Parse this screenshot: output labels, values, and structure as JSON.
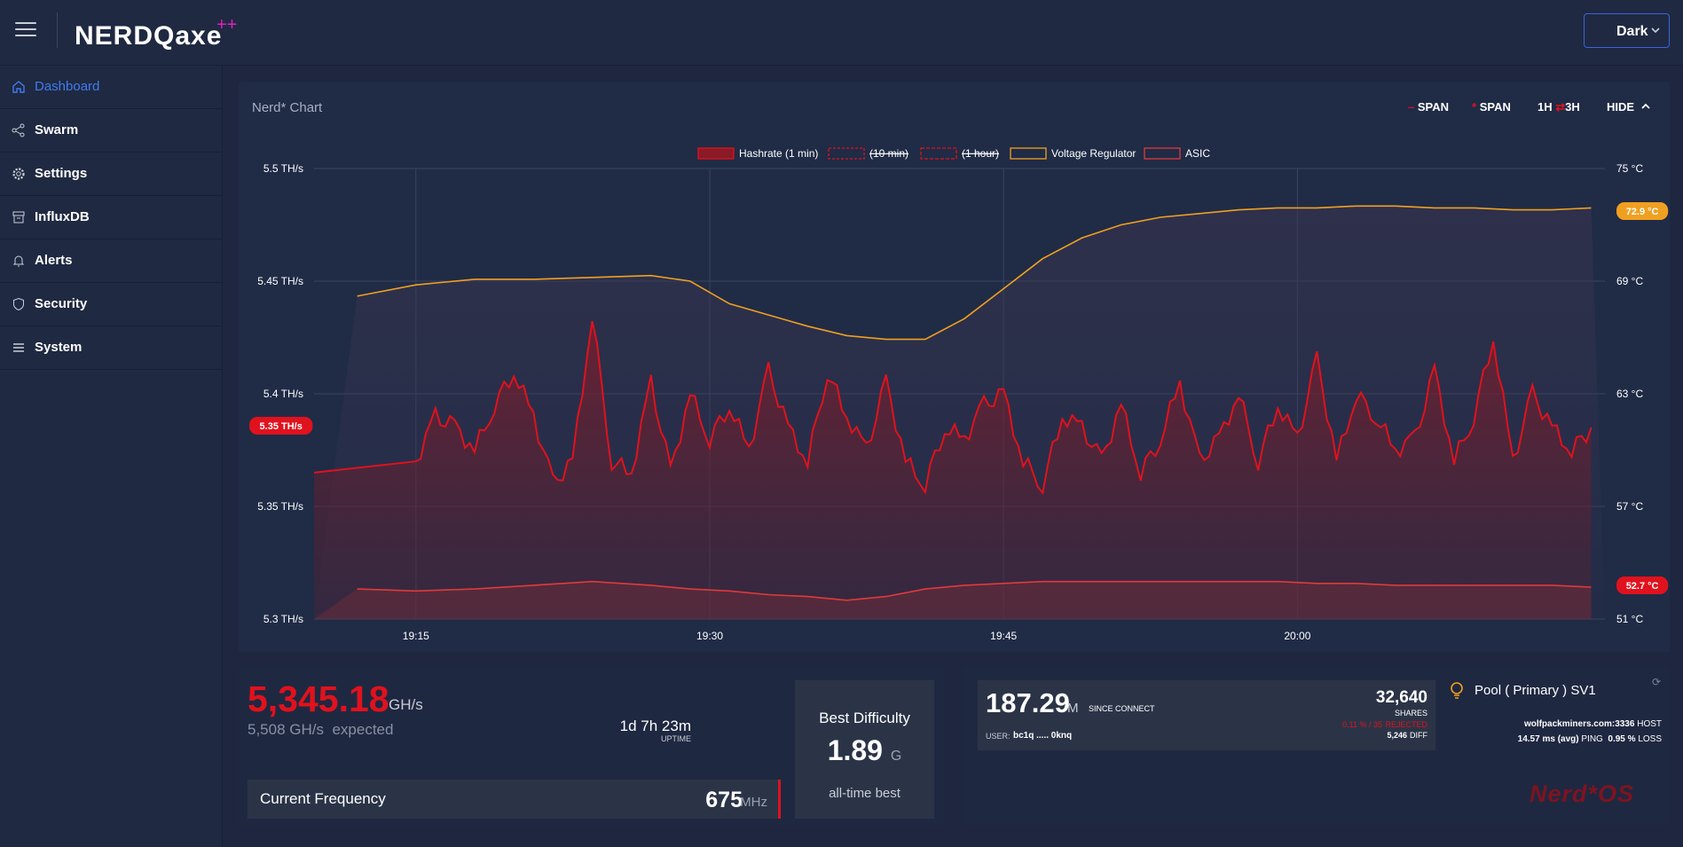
{
  "logo": {
    "text": "NERDQaxe",
    "sup": "++"
  },
  "theme": {
    "value": "Dark"
  },
  "sidebar": {
    "items": [
      {
        "label": "Dashboard",
        "icon": "home-icon",
        "active": true
      },
      {
        "label": "Swarm",
        "icon": "share-icon"
      },
      {
        "label": "Settings",
        "icon": "gear-icon"
      },
      {
        "label": "InfluxDB",
        "icon": "database-icon"
      },
      {
        "label": "Alerts",
        "icon": "bell-icon"
      },
      {
        "label": "Security",
        "icon": "shield-icon"
      },
      {
        "label": "System",
        "icon": "list-icon"
      }
    ]
  },
  "chart_card": {
    "title": "Nerd* Chart",
    "controls": {
      "span1": "SPAN",
      "span2": "SPAN",
      "range_a": "1H",
      "range_sep": "⇄",
      "range_b": "3H",
      "hide": "HIDE"
    }
  },
  "chart_data": {
    "type": "line",
    "legend": [
      "Hashrate (1 min)",
      "(10 min)",
      "(1 hour)",
      "Voltage Regulator",
      "ASIC"
    ],
    "x_ticks": [
      "19:15",
      "19:30",
      "19:45",
      "20:00"
    ],
    "y_left": {
      "ticks": [
        "5.5 TH/s",
        "5.45 TH/s",
        "5.4 TH/s",
        "5.35 TH/s",
        "5.3 TH/s"
      ],
      "range": [
        5.3,
        5.5
      ],
      "unit": "TH/s"
    },
    "y_right": {
      "ticks": [
        "75 °C",
        "69 °C",
        "63 °C",
        "57 °C",
        "51 °C"
      ],
      "range": [
        51,
        75
      ],
      "unit": "°C"
    },
    "x_range_minutes": [
      0,
      60
    ],
    "current": {
      "hashrate": "5.35 TH/s",
      "vr": "72.9 °C",
      "asic": "52.7 °C"
    },
    "series": [
      {
        "name": "Hashrate (1 min)",
        "color": "#e0121d",
        "axis": "left",
        "points": [
          [
            0,
            5.37
          ],
          [
            1,
            5.39
          ],
          [
            2,
            5.385
          ],
          [
            3,
            5.375
          ],
          [
            4,
            5.395
          ],
          [
            5,
            5.41
          ],
          [
            6,
            5.39
          ],
          [
            7,
            5.36
          ],
          [
            8,
            5.37
          ],
          [
            9,
            5.435
          ],
          [
            10,
            5.37
          ],
          [
            11,
            5.365
          ],
          [
            12,
            5.405
          ],
          [
            13,
            5.365
          ],
          [
            14,
            5.4
          ],
          [
            15,
            5.38
          ],
          [
            16,
            5.395
          ],
          [
            17,
            5.375
          ],
          [
            18,
            5.41
          ],
          [
            19,
            5.385
          ],
          [
            20,
            5.37
          ],
          [
            21,
            5.41
          ],
          [
            22,
            5.39
          ],
          [
            23,
            5.375
          ],
          [
            24,
            5.405
          ],
          [
            25,
            5.37
          ],
          [
            26,
            5.36
          ],
          [
            27,
            5.385
          ],
          [
            28,
            5.38
          ],
          [
            29,
            5.395
          ],
          [
            30,
            5.4
          ],
          [
            31,
            5.37
          ],
          [
            32,
            5.36
          ],
          [
            33,
            5.39
          ],
          [
            34,
            5.385
          ],
          [
            35,
            5.37
          ],
          [
            36,
            5.395
          ],
          [
            37,
            5.365
          ],
          [
            38,
            5.38
          ],
          [
            39,
            5.405
          ],
          [
            40,
            5.37
          ],
          [
            41,
            5.38
          ],
          [
            42,
            5.4
          ],
          [
            43,
            5.37
          ],
          [
            44,
            5.395
          ],
          [
            45,
            5.38
          ],
          [
            46,
            5.415
          ],
          [
            47,
            5.37
          ],
          [
            48,
            5.4
          ],
          [
            49,
            5.39
          ],
          [
            50,
            5.375
          ],
          [
            51,
            5.38
          ],
          [
            52,
            5.41
          ],
          [
            53,
            5.37
          ],
          [
            54,
            5.39
          ],
          [
            55,
            5.425
          ],
          [
            56,
            5.37
          ],
          [
            57,
            5.4
          ],
          [
            58,
            5.385
          ],
          [
            59,
            5.375
          ],
          [
            60,
            5.385
          ]
        ]
      },
      {
        "name": "Voltage Regulator",
        "color": "#f0a020",
        "axis": "right",
        "points": [
          [
            -3,
            68.2
          ],
          [
            0,
            68.8
          ],
          [
            3,
            69.1
          ],
          [
            6,
            69.1
          ],
          [
            9,
            69.2
          ],
          [
            12,
            69.3
          ],
          [
            14,
            69.0
          ],
          [
            16,
            67.8
          ],
          [
            18,
            67.2
          ],
          [
            20,
            66.6
          ],
          [
            22,
            66.1
          ],
          [
            24,
            65.9
          ],
          [
            26,
            65.9
          ],
          [
            28,
            67.0
          ],
          [
            30,
            68.6
          ],
          [
            32,
            70.2
          ],
          [
            34,
            71.3
          ],
          [
            36,
            72.0
          ],
          [
            38,
            72.4
          ],
          [
            40,
            72.6
          ],
          [
            42,
            72.8
          ],
          [
            44,
            72.9
          ],
          [
            46,
            72.9
          ],
          [
            48,
            73.0
          ],
          [
            50,
            73.0
          ],
          [
            52,
            72.9
          ],
          [
            54,
            72.9
          ],
          [
            56,
            72.8
          ],
          [
            58,
            72.8
          ],
          [
            60,
            72.9
          ]
        ]
      },
      {
        "name": "ASIC",
        "color": "#e03a3a",
        "axis": "right",
        "points": [
          [
            -3,
            52.6
          ],
          [
            0,
            52.5
          ],
          [
            3,
            52.6
          ],
          [
            6,
            52.8
          ],
          [
            9,
            53.0
          ],
          [
            12,
            52.8
          ],
          [
            14,
            52.6
          ],
          [
            16,
            52.5
          ],
          [
            18,
            52.3
          ],
          [
            20,
            52.2
          ],
          [
            22,
            52.0
          ],
          [
            24,
            52.2
          ],
          [
            26,
            52.6
          ],
          [
            28,
            52.8
          ],
          [
            30,
            52.9
          ],
          [
            32,
            53.0
          ],
          [
            34,
            53.0
          ],
          [
            36,
            53.0
          ],
          [
            38,
            53.0
          ],
          [
            40,
            53.0
          ],
          [
            42,
            53.0
          ],
          [
            44,
            53.0
          ],
          [
            46,
            52.9
          ],
          [
            48,
            52.9
          ],
          [
            50,
            52.8
          ],
          [
            52,
            52.8
          ],
          [
            54,
            52.8
          ],
          [
            56,
            52.8
          ],
          [
            58,
            52.8
          ],
          [
            60,
            52.7
          ]
        ]
      }
    ]
  },
  "stats": {
    "hashrate": "5,345.18",
    "hashrate_unit": "GH/s",
    "expected_value": "5,508",
    "expected_unit": "GH/s",
    "expected_label": "expected",
    "uptime": "1d 7h 23m",
    "uptime_label": "UPTIME",
    "frequency_label": "Current Frequency",
    "frequency_value": "675",
    "frequency_unit": "MHz",
    "best_difficulty_title": "Best Difficulty",
    "best_difficulty_value": "1.89",
    "best_difficulty_unit": "G",
    "best_difficulty_sub": "all-time best"
  },
  "pool": {
    "diff_value": "187.29",
    "diff_unit": "M",
    "since_connect": "SINCE CONNECT",
    "user_label": "USER:",
    "user_value": "bc1q ..... 0knq",
    "shares_value": "32,640",
    "shares_label": "SHARES",
    "rejected_value": "0.11 % / 35",
    "rejected_label": "REJECTED",
    "diff_small": "5,246",
    "diff_small_label": "DIFF",
    "pool_name": "Pool ( Primary ) SV1",
    "host_value": "wolfpackminers.com:3336",
    "host_label": "HOST",
    "ping_value": "14.57 ms (avg)",
    "ping_label": "PING",
    "loss_value": "0.95 %",
    "loss_label": "LOSS",
    "brand": "Nerd*OS"
  }
}
